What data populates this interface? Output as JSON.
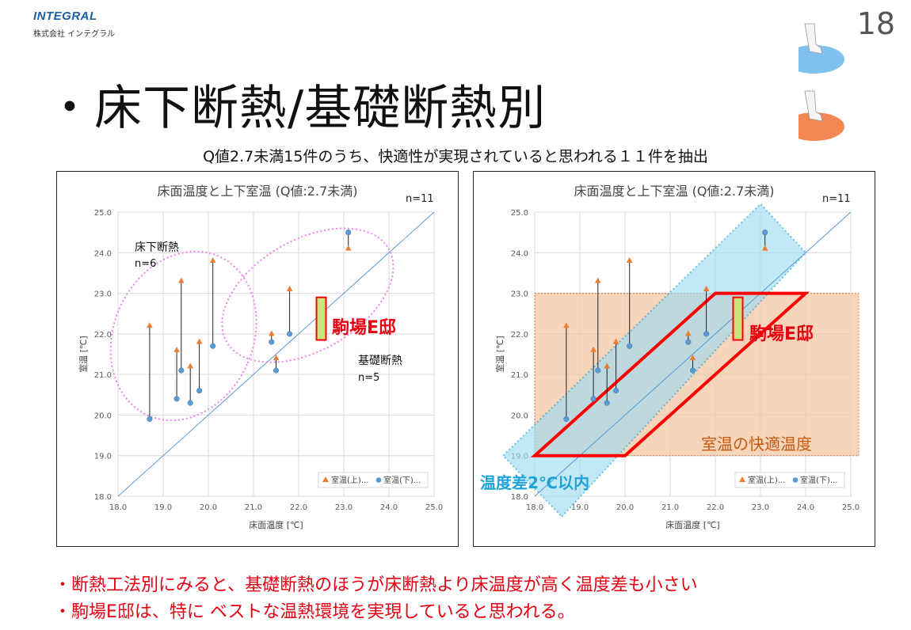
{
  "header": {
    "logo_text": "INTEGRAL",
    "logo_subtext": "株式会社 インテグラル",
    "page_number": "18",
    "title": "・床下断熱/基礎断熱別",
    "subtitle": "Q値2.7未満15件のうち、快適性が実現されていると思われる１１件を抽出"
  },
  "footer_notes": [
    "・断熱工法別にみると、基礎断熱のほうが床断熱より床温度が高く温度差も小さい",
    "・駒場E邸は、特に ベストな温熱環境を実現していると思われる。"
  ],
  "colors": {
    "upper_series": "#ed7d31",
    "lower_series": "#5b9bd5",
    "annotation_red": "#e60012",
    "ellipse_pink": "#ee82ee",
    "band_blue": "#9fdcf0",
    "comfort_orange": "#f4c7a5"
  },
  "chart_data": [
    {
      "type": "scatter",
      "title": "床面温度と上下室温 (Q値:2.7未満)",
      "n_label": "n=11",
      "xlabel": "床面温度 [℃]",
      "ylabel": "室温 [℃]",
      "xlim": [
        18.0,
        25.0
      ],
      "ylim": [
        18.0,
        25.0
      ],
      "x_ticks": [
        "18.0",
        "19.0",
        "20.0",
        "21.0",
        "22.0",
        "23.0",
        "24.0",
        "25.0"
      ],
      "y_ticks": [
        "18.0",
        "19.0",
        "20.0",
        "21.0",
        "22.0",
        "23.0",
        "24.0",
        "25.0"
      ],
      "grid": true,
      "legend_position": "bottom-right",
      "legend": [
        "室温(上)...",
        "室温(下)..."
      ],
      "series": [
        {
          "name": "室温(上)...",
          "marker": "triangle",
          "x": [
            18.7,
            19.3,
            19.4,
            19.6,
            19.8,
            20.1,
            21.4,
            21.5,
            21.8,
            22.5,
            23.1
          ],
          "y": [
            22.2,
            21.6,
            23.3,
            21.2,
            21.8,
            23.8,
            22.0,
            21.4,
            23.1,
            21.9,
            24.1
          ]
        },
        {
          "name": "室温(下)...",
          "marker": "circle",
          "x": [
            18.7,
            19.3,
            19.4,
            19.6,
            19.8,
            20.1,
            21.4,
            21.5,
            21.8,
            22.5,
            23.1
          ],
          "y": [
            19.9,
            20.4,
            21.1,
            20.3,
            20.6,
            21.7,
            21.8,
            21.1,
            22.0,
            22.8,
            24.5
          ]
        }
      ],
      "annotations": {
        "floor_group": {
          "label": "床下断熱",
          "n": "n=6"
        },
        "foundation_group": {
          "label": "基礎断熱",
          "n": "n=5"
        },
        "highlight": "駒場E邸"
      }
    },
    {
      "type": "scatter",
      "title": "床面温度と上下室温 (Q値:2.7未満)",
      "n_label": "n=11",
      "xlabel": "床面温度 [℃]",
      "ylabel": "室温 [℃]",
      "xlim": [
        18.0,
        25.0
      ],
      "ylim": [
        18.0,
        25.0
      ],
      "x_ticks": [
        "18.0",
        "19.0",
        "20.0",
        "21.0",
        "22.0",
        "23.0",
        "24.0",
        "25.0"
      ],
      "y_ticks": [
        "18.0",
        "19.0",
        "20.0",
        "21.0",
        "22.0",
        "23.0",
        "24.0",
        "25.0"
      ],
      "grid": true,
      "legend_position": "bottom-right",
      "legend": [
        "室温(上)...",
        "室温(下)..."
      ],
      "series": [
        {
          "name": "室温(上)...",
          "marker": "triangle",
          "x": [
            18.7,
            19.3,
            19.4,
            19.6,
            19.8,
            20.1,
            21.4,
            21.5,
            21.8,
            22.5,
            23.1
          ],
          "y": [
            22.2,
            21.6,
            23.3,
            21.2,
            21.8,
            23.8,
            22.0,
            21.4,
            23.1,
            21.9,
            24.1
          ]
        },
        {
          "name": "室温(下)...",
          "marker": "circle",
          "x": [
            18.7,
            19.3,
            19.4,
            19.6,
            19.8,
            20.1,
            21.4,
            21.5,
            21.8,
            22.5,
            23.1
          ],
          "y": [
            19.9,
            20.4,
            21.1,
            20.3,
            20.6,
            21.7,
            21.8,
            21.1,
            22.0,
            22.8,
            24.5
          ]
        }
      ],
      "annotations": {
        "comfort_zone": {
          "label": "室温の快適温度",
          "y_range": [
            19.0,
            23.0
          ]
        },
        "diff_band": {
          "label": "温度差2℃以内",
          "width": 2.0
        },
        "highlight": "駒場E邸"
      }
    }
  ]
}
